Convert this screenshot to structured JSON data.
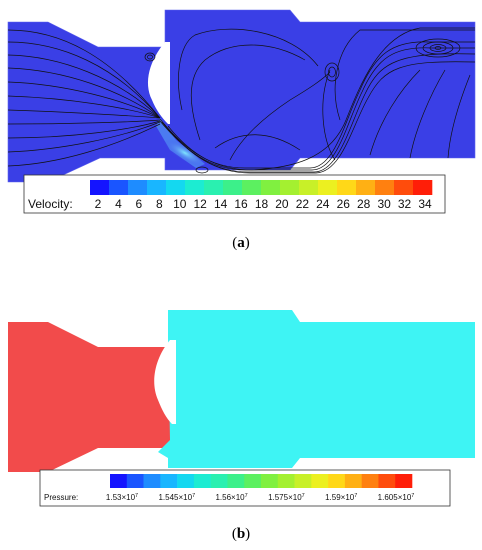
{
  "panel_a": {
    "caption": {
      "open": "(",
      "letter": "a",
      "close": ")"
    },
    "field_color": "#3a3fe6",
    "colorbar": {
      "label": "Velocity:",
      "ticks": [
        "2",
        "4",
        "6",
        "8",
        "10",
        "12",
        "14",
        "16",
        "18",
        "20",
        "22",
        "24",
        "26",
        "28",
        "30",
        "32",
        "34"
      ],
      "colors": [
        "#1414ff",
        "#1a55ff",
        "#1e8cff",
        "#19b6ff",
        "#14d8f0",
        "#1cecd2",
        "#2af0b0",
        "#3cf08a",
        "#5cf060",
        "#80f040",
        "#a4f030",
        "#c8f028",
        "#ecf020",
        "#ffd818",
        "#ffb014",
        "#ff8010",
        "#ff4c0c",
        "#ff1e08"
      ]
    }
  },
  "panel_b": {
    "caption": {
      "open": "(",
      "letter": "b",
      "close": ")"
    },
    "inlet_color": "#f24b4b",
    "chamber_color": "#3ef4f4",
    "colorbar": {
      "label": "Pressure:",
      "ticks": [
        {
          "m": "1.53×10",
          "e": "7"
        },
        {
          "m": "1.545×10",
          "e": "7"
        },
        {
          "m": "1.56×10",
          "e": "7"
        },
        {
          "m": "1.575×10",
          "e": "7"
        },
        {
          "m": "1.59×10",
          "e": "7"
        },
        {
          "m": "1.605×10",
          "e": "7"
        }
      ],
      "colors": [
        "#1414ff",
        "#1a55ff",
        "#1e8cff",
        "#19b6ff",
        "#14d8f0",
        "#1cecd2",
        "#2af0b0",
        "#3cf08a",
        "#5cf060",
        "#80f040",
        "#a4f030",
        "#c8f028",
        "#ecf020",
        "#ffd818",
        "#ffb014",
        "#ff8010",
        "#ff4c0c",
        "#ff1e08"
      ]
    }
  }
}
